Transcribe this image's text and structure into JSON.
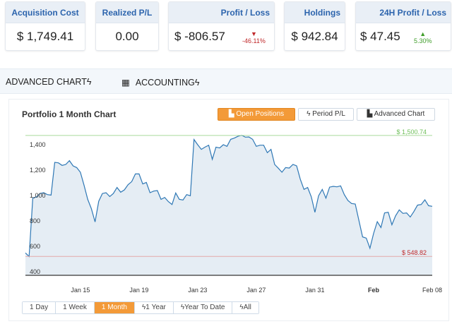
{
  "cards": [
    {
      "title": "Acquisition Cost",
      "value": "$ 1,749.41"
    },
    {
      "title": "Realized P/L",
      "value": "0.00"
    },
    {
      "title": "Profit / Loss",
      "value": "$ -806.57",
      "change": "-46.11%",
      "direction": "down"
    },
    {
      "title": "Holdings",
      "value": "$ 942.84"
    },
    {
      "title": "24H Profit / Loss",
      "value": "$ 47.45",
      "change": "5.30%",
      "direction": "up"
    }
  ],
  "tabs": [
    {
      "label": "ADVANCED CHART",
      "icon": "bolt-icon"
    },
    {
      "label": "ACCOUNTING",
      "icon": "calculator-icon"
    }
  ],
  "chart_panel": {
    "title": "Portfolio 1 Month Chart",
    "buttons": [
      {
        "label": "Open Positions",
        "active": true,
        "icon": "area-chart-icon"
      },
      {
        "label": "Period P/L",
        "active": false,
        "icon": "bolt-icon"
      },
      {
        "label": "Advanced Chart",
        "active": false,
        "icon": "area-chart-icon"
      }
    ],
    "ranges": [
      {
        "label": "1 Day"
      },
      {
        "label": "1 Week"
      },
      {
        "label": "1 Month",
        "active": true
      },
      {
        "label": "1 Year",
        "bolt": true
      },
      {
        "label": "Year To Date",
        "bolt": true
      },
      {
        "label": "All",
        "bolt": true
      }
    ]
  },
  "colors": {
    "accent": "#f39a38",
    "title_blue": "#2c64ad",
    "negative": "#c0282a",
    "positive": "#3f9d2a",
    "line": "#2f78b5",
    "fill": "#e5edf4"
  },
  "chart_data": {
    "type": "area",
    "start": "Jan 11 06:00",
    "interval_hours": 6,
    "values": [
      576,
      548,
      1007,
      1017,
      1044,
      1050,
      1035,
      1031,
      1289,
      1285,
      1265,
      1272,
      1302,
      1261,
      1248,
      1211,
      1109,
      998,
      924,
      820,
      983,
      1044,
      1050,
      1020,
      1044,
      1091,
      1054,
      1072,
      1113,
      1137,
      1198,
      1198,
      1119,
      1131,
      1050,
      1063,
      1067,
      998,
      1013,
      980,
      957,
      1048,
      998,
      993,
      1035,
      1026,
      1469,
      1428,
      1391,
      1409,
      1424,
      1313,
      1409,
      1402,
      1428,
      1415,
      1470,
      1480,
      1494,
      1502,
      1487,
      1489,
      1470,
      1415,
      1424,
      1424,
      1365,
      1391,
      1272,
      1243,
      1211,
      1248,
      1244,
      1272,
      1261,
      1156,
      1076,
      1091,
      1017,
      896,
      1026,
      1076,
      1007,
      1094,
      1100,
      1096,
      1104,
      1035,
      989,
      965,
      961,
      831,
      702,
      693,
      613,
      730,
      822,
      776,
      891,
      896,
      798,
      868,
      915,
      887,
      891,
      859,
      902,
      952,
      957,
      994,
      948,
      943
    ],
    "ylim": [
      400,
      1500.74
    ],
    "y_ticks": [
      "400",
      "600",
      "800",
      "1,000",
      "1,200",
      "1,400"
    ],
    "x_ticks": [
      {
        "date": "Jan 15",
        "label": "Jan 15"
      },
      {
        "date": "Jan 19",
        "label": "Jan 19"
      },
      {
        "date": "Jan 23",
        "label": "Jan 23"
      },
      {
        "date": "Jan 27",
        "label": "Jan 27"
      },
      {
        "date": "Jan 31",
        "label": "Jan 31"
      },
      {
        "date": "Feb 04",
        "label": "Feb",
        "bold": true
      },
      {
        "date": "Feb 08",
        "label": "Feb 08"
      }
    ],
    "max_line": {
      "value": 1500.74,
      "label": "$ 1,500.74"
    },
    "min_line": {
      "value": 548.82,
      "label": "$ 548.82"
    },
    "grid": false
  }
}
